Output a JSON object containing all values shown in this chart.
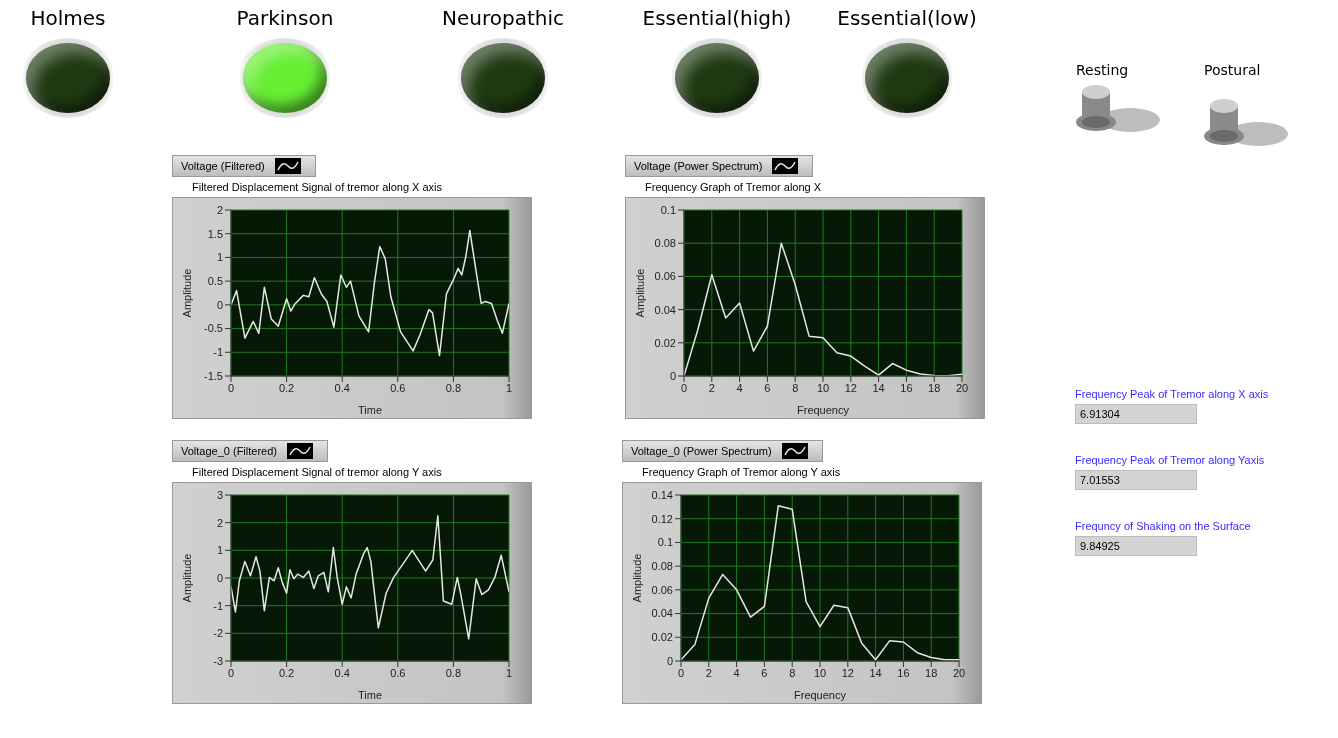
{
  "chart_data": [
    {
      "type": "line",
      "title": "Filtered Displacement Signal of tremor along X axis",
      "xlabel": "Time",
      "ylabel": "Amplitude",
      "legend": "top left",
      "grid": true,
      "xlim": [
        0,
        1
      ],
      "ylim": [
        -1.5,
        2
      ],
      "xticks": [
        0,
        0.2,
        0.4,
        0.6,
        0.8,
        1
      ],
      "yticks": [
        -1.5,
        -1,
        -0.5,
        0,
        0.5,
        1,
        1.5,
        2
      ],
      "series": [
        {
          "name": "Voltage (Filtered)",
          "color": "#e6e6e6",
          "x": [
            0,
            0.02,
            0.05,
            0.08,
            0.1,
            0.12,
            0.145,
            0.17,
            0.2,
            0.215,
            0.23,
            0.26,
            0.28,
            0.3,
            0.325,
            0.345,
            0.37,
            0.395,
            0.415,
            0.43,
            0.46,
            0.495,
            0.515,
            0.535,
            0.555,
            0.575,
            0.61,
            0.655,
            0.68,
            0.712,
            0.725,
            0.75,
            0.775,
            0.803,
            0.817,
            0.83,
            0.845,
            0.859,
            0.88,
            0.9,
            0.915,
            0.937,
            0.958,
            0.976,
            1
          ],
          "values": [
            0,
            0.3,
            -0.7,
            -0.35,
            -0.6,
            0.37,
            -0.3,
            -0.45,
            0.13,
            -0.13,
            0.02,
            0.2,
            0.17,
            0.57,
            0.23,
            0.07,
            -0.47,
            0.63,
            0.37,
            0.5,
            -0.23,
            -0.57,
            0.43,
            1.23,
            0.97,
            0.17,
            -0.57,
            -0.97,
            -0.63,
            -0.1,
            -0.17,
            -1.07,
            0.23,
            0.57,
            0.77,
            0.63,
            1.03,
            1.57,
            0.77,
            0.03,
            0.07,
            0.03,
            -0.33,
            -0.6,
            0.03
          ]
        }
      ]
    },
    {
      "type": "line",
      "title": "Frequency Graph of Tremor along X",
      "xlabel": "Frequency",
      "ylabel": "Amplitude",
      "legend": "top left",
      "grid": true,
      "xlim": [
        0,
        20
      ],
      "ylim": [
        0,
        0.1
      ],
      "xticks": [
        0,
        2,
        4,
        6,
        8,
        10,
        12,
        14,
        16,
        18,
        20
      ],
      "yticks": [
        0,
        0.02,
        0.04,
        0.06,
        0.08,
        0.1
      ],
      "series": [
        {
          "name": "Voltage (Power Spectrum)",
          "color": "#e6e6e6",
          "x": [
            0,
            1,
            2,
            3,
            4,
            5,
            6,
            7,
            8,
            9,
            10,
            11,
            12,
            13,
            14,
            15,
            16,
            17,
            18,
            19,
            20
          ],
          "values": [
            0,
            0.028,
            0.061,
            0.035,
            0.044,
            0.015,
            0.03,
            0.08,
            0.055,
            0.024,
            0.023,
            0.014,
            0.012,
            0.006,
            0.0005,
            0.0075,
            0.0035,
            0.0012,
            0.0003,
            0.0002,
            0.001
          ]
        }
      ]
    },
    {
      "type": "line",
      "title": "Filtered Displacement Signal of tremor along Y axis",
      "xlabel": "Time",
      "ylabel": "Amplitude",
      "legend": "top left",
      "grid": true,
      "xlim": [
        0,
        1
      ],
      "ylim": [
        -3,
        3
      ],
      "xticks": [
        0,
        0.2,
        0.4,
        0.6,
        0.8,
        1
      ],
      "yticks": [
        -3,
        -2,
        -1,
        0,
        1,
        2,
        3
      ],
      "series": [
        {
          "name": "Voltage_0 (Filtered)",
          "color": "#e6e6e6",
          "x": [
            0,
            0.016,
            0.03,
            0.05,
            0.07,
            0.09,
            0.104,
            0.12,
            0.138,
            0.155,
            0.17,
            0.184,
            0.2,
            0.212,
            0.226,
            0.24,
            0.26,
            0.28,
            0.298,
            0.314,
            0.334,
            0.35,
            0.368,
            0.382,
            0.4,
            0.415,
            0.432,
            0.45,
            0.477,
            0.49,
            0.503,
            0.53,
            0.558,
            0.585,
            0.625,
            0.652,
            0.7,
            0.726,
            0.744,
            0.764,
            0.794,
            0.814,
            0.828,
            0.855,
            0.882,
            0.902,
            0.926,
            0.949,
            0.972,
            1
          ],
          "values": [
            -0.3,
            -1.23,
            -0.1,
            0.6,
            0.08,
            0.77,
            0.25,
            -1.18,
            0.02,
            -0.1,
            0.37,
            -0.15,
            -0.55,
            0.3,
            -0.03,
            0.14,
            0.02,
            0.25,
            -0.38,
            0.08,
            0.2,
            -0.5,
            1.1,
            0.02,
            -0.95,
            -0.32,
            -0.72,
            0.14,
            0.88,
            1.1,
            0.6,
            -1.8,
            -0.55,
            0.02,
            0.6,
            1,
            0.25,
            0.65,
            2.25,
            -0.83,
            -0.95,
            0.02,
            -0.66,
            -2.2,
            -0.03,
            -0.6,
            -0.43,
            0.02,
            0.82,
            -0.5
          ]
        }
      ]
    },
    {
      "type": "line",
      "title": "Frequency Graph of Tremor along Y axis",
      "xlabel": "Frequency",
      "ylabel": "Amplitude",
      "legend": "top left",
      "grid": true,
      "xlim": [
        0,
        20
      ],
      "ylim": [
        0,
        0.14
      ],
      "xticks": [
        0,
        2,
        4,
        6,
        8,
        10,
        12,
        14,
        16,
        18,
        20
      ],
      "yticks": [
        0,
        0.02,
        0.04,
        0.06,
        0.08,
        0.1,
        0.12,
        0.14
      ],
      "series": [
        {
          "name": "Voltage_0 (Power Spectrum)",
          "color": "#e6e6e6",
          "x": [
            0,
            1,
            2,
            3,
            4,
            5,
            6,
            7,
            8,
            9,
            10,
            11,
            12,
            13,
            14,
            15,
            16,
            17,
            18,
            19,
            20
          ],
          "values": [
            0.001,
            0.014,
            0.053,
            0.073,
            0.06,
            0.037,
            0.046,
            0.131,
            0.128,
            0.05,
            0.029,
            0.047,
            0.045,
            0.015,
            0.001,
            0.017,
            0.016,
            0.007,
            0.003,
            0.001,
            0.001
          ]
        }
      ]
    },
    {
      "type": "other",
      "categories": [
        "Holmes",
        "Parkinson",
        "Neuropathic",
        "Essential(high)",
        "Essential(low)"
      ],
      "colors": [
        "#1f3a12",
        "#66ee33",
        "#1f3a12",
        "#1f3a12",
        "#1f3a12"
      ],
      "annotations": [
        "Resting",
        "Postural",
        "Frequency Peak of Tremor along X axis",
        "6.91304",
        "Frequency Peak of Tremor along Yaxis",
        "7.01553",
        "Frequncy of Shaking on the  Surface",
        "9.84925"
      ]
    }
  ]
}
